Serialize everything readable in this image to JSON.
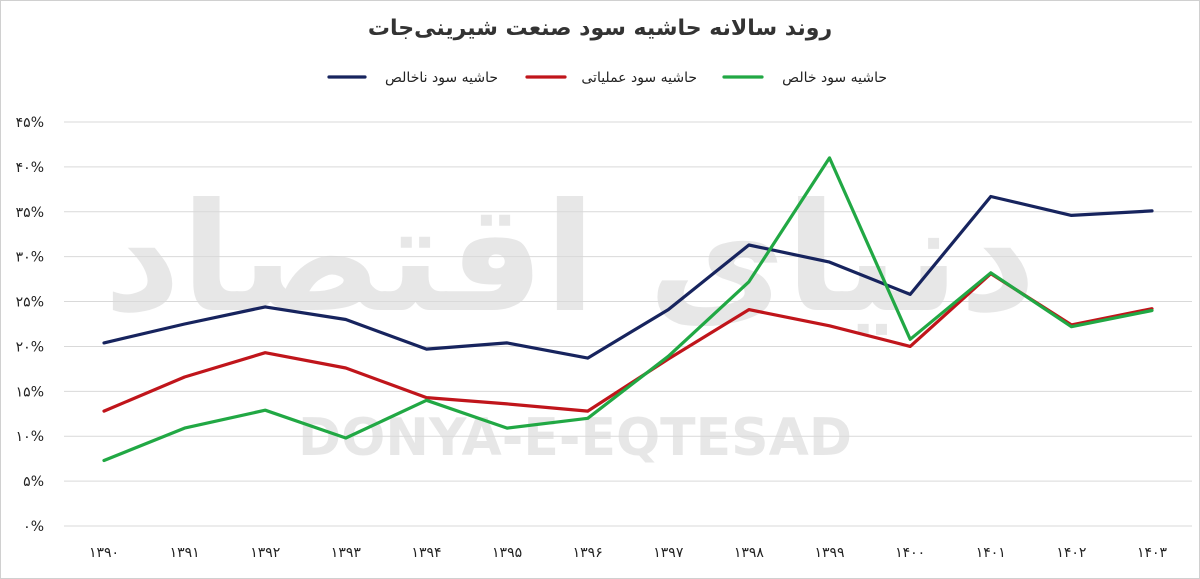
{
  "chart_data": {
    "type": "line",
    "title": "روند سالانه حاشیه سود صنعت شیرینی‌جات",
    "xlabel": "",
    "ylabel": "",
    "categories": [
      "۱۳۹۰",
      "۱۳۹۱",
      "۱۳۹۲",
      "۱۳۹۳",
      "۱۳۹۴",
      "۱۳۹۵",
      "۱۳۹۶",
      "۱۳۹۷",
      "۱۳۹۸",
      "۱۳۹۹",
      "۱۴۰۰",
      "۱۴۰۱",
      "۱۴۰۲",
      "۱۴۰۳"
    ],
    "ylim": [
      0,
      45
    ],
    "yticks": [
      {
        "value": 0,
        "label": "۰%"
      },
      {
        "value": 5,
        "label": "۵%"
      },
      {
        "value": 10,
        "label": "۱۰%"
      },
      {
        "value": 15,
        "label": "۱۵%"
      },
      {
        "value": 20,
        "label": "۲۰%"
      },
      {
        "value": 25,
        "label": "۲۵%"
      },
      {
        "value": 30,
        "label": "۳۰%"
      },
      {
        "value": 35,
        "label": "۳۵%"
      },
      {
        "value": 40,
        "label": "۴۰%"
      },
      {
        "value": 45,
        "label": "۴۵%"
      }
    ],
    "grid": true,
    "legend_position": "top-center",
    "series": [
      {
        "name": "حاشیه سود ناخالص",
        "color": "#17245e",
        "values": [
          20.4,
          22.5,
          24.4,
          23.0,
          19.7,
          20.4,
          18.7,
          24.1,
          31.3,
          29.4,
          25.8,
          36.7,
          34.6,
          35.1
        ]
      },
      {
        "name": "حاشیه سود عملیاتی",
        "color": "#c0151b",
        "values": [
          12.8,
          16.6,
          19.3,
          17.6,
          14.3,
          13.6,
          12.8,
          18.6,
          24.1,
          22.3,
          20.0,
          28.1,
          22.4,
          24.2
        ]
      },
      {
        "name": "حاشیه سود خالص",
        "color": "#21a844",
        "values": [
          7.3,
          10.9,
          12.9,
          9.8,
          14.0,
          10.9,
          12.0,
          18.9,
          27.2,
          41.0,
          20.8,
          28.2,
          22.2,
          24.0
        ]
      }
    ]
  },
  "watermark": {
    "text_fa": "دنیای اقتصاد",
    "text_en": "DONYA-E-EQTESAD"
  }
}
